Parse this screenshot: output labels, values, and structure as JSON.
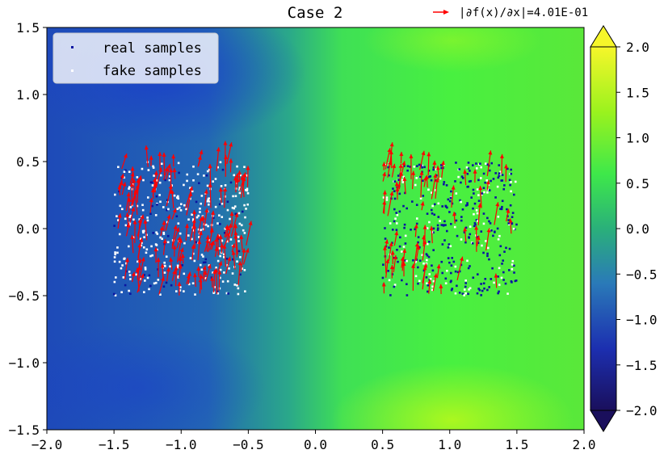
{
  "chart_data": {
    "type": "scatter",
    "title": "Case 2",
    "arrow_key_label": "|∂f(x)/∂x|=4.01E-01",
    "xlim": [
      -2.0,
      2.0
    ],
    "ylim": [
      -1.5,
      1.5
    ],
    "x_ticks": [
      "−2.0",
      "−1.5",
      "−1.0",
      "−0.5",
      "0.0",
      "0.5",
      "1.0",
      "1.5",
      "2.0"
    ],
    "y_ticks": [
      "1.5",
      "1.0",
      "0.5",
      "0.0",
      "−0.5",
      "−1.0",
      "−1.5"
    ],
    "legend": {
      "placement": "upper-left",
      "entries": [
        {
          "label": "real samples",
          "color": "#0a14a0"
        },
        {
          "label": "fake samples",
          "color": "#ffffff"
        }
      ]
    },
    "clusters": [
      {
        "name": "left",
        "x_range": [
          -1.5,
          -0.5
        ],
        "y_range": [
          -0.5,
          0.5
        ],
        "real_fraction": 0.15
      },
      {
        "name": "right",
        "x_range": [
          0.5,
          1.5
        ],
        "y_range": [
          -0.5,
          0.5
        ],
        "real_fraction": 0.7
      }
    ],
    "colorbar": {
      "range": [
        -2.0,
        2.0
      ],
      "ticks": [
        "2.0",
        "1.5",
        "1.0",
        "0.5",
        "0.0",
        "−0.5",
        "−1.0",
        "−1.5",
        "−2.0"
      ],
      "colormap": [
        "#1a0f5c",
        "#1c2fb0",
        "#2a7ab8",
        "#2ab07a",
        "#3ee84a",
        "#9af21e",
        "#f6f62a"
      ]
    },
    "colors": {
      "arrow": "#ff0000",
      "real": "#0a14a0",
      "fake": "#ffffff"
    }
  }
}
